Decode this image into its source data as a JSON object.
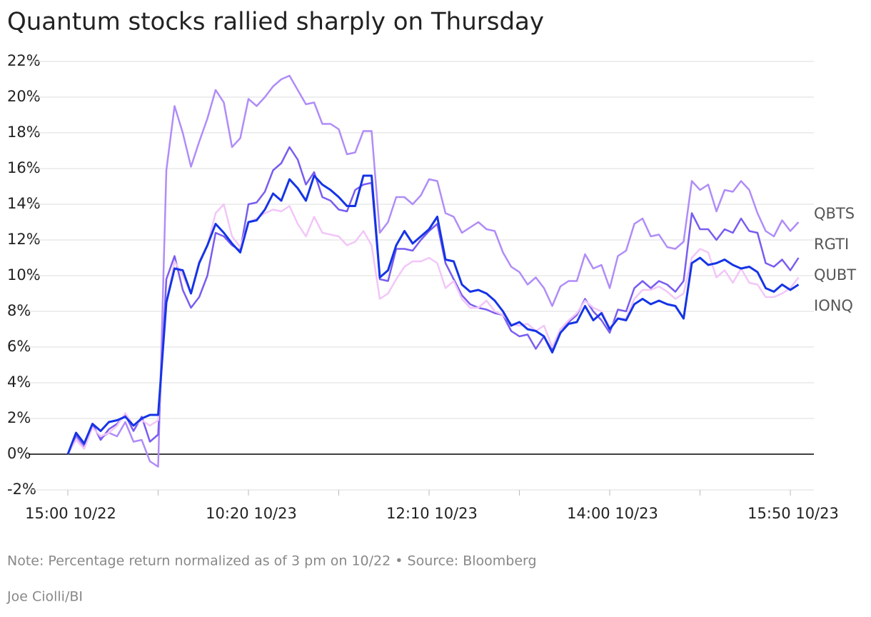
{
  "chart_data": {
    "type": "line",
    "title": "Quantum stocks rallied sharply on Thursday",
    "note": "Note: Percentage return normalized as of 3 pm on 10/22 • Source: Bloomberg",
    "credit": "Joe Ciolli/BI",
    "ylim": [
      -2,
      22
    ],
    "yticks": [
      {
        "value": -2,
        "label": "-2%"
      },
      {
        "value": 0,
        "label": "0%"
      },
      {
        "value": 2,
        "label": "2%"
      },
      {
        "value": 4,
        "label": "4%"
      },
      {
        "value": 6,
        "label": "6%"
      },
      {
        "value": 8,
        "label": "8%"
      },
      {
        "value": 10,
        "label": "10%"
      },
      {
        "value": 12,
        "label": "12%"
      },
      {
        "value": 14,
        "label": "14%"
      },
      {
        "value": 16,
        "label": "16%"
      },
      {
        "value": 18,
        "label": "18%"
      },
      {
        "value": 20,
        "label": "20%"
      },
      {
        "value": 22,
        "label": "22%"
      }
    ],
    "xticks": [
      {
        "value": 0,
        "label": "15:00 10/22"
      },
      {
        "value": 22,
        "label": "10:20 10/23"
      },
      {
        "value": 44,
        "label": "12:10 10/23"
      },
      {
        "value": 66,
        "label": "14:00 10/23"
      },
      {
        "value": 88,
        "label": "15:50 10/23"
      }
    ],
    "xminorticks": [
      11,
      33,
      55,
      77
    ],
    "grid": true,
    "series": [
      {
        "name": "QBTS",
        "color": "#b08cf8",
        "values": [
          0,
          1.0,
          0.4,
          1.6,
          0.9,
          1.2,
          1.0,
          1.8,
          0.7,
          0.8,
          -0.4,
          -0.7,
          15.9,
          19.5,
          18.0,
          16.1,
          17.5,
          18.8,
          20.4,
          19.7,
          17.2,
          17.7,
          19.9,
          19.5,
          20.0,
          20.6,
          21.0,
          21.2,
          20.4,
          19.6,
          19.7,
          18.5,
          18.5,
          18.2,
          16.8,
          16.9,
          18.1,
          18.1,
          12.4,
          13.0,
          14.4,
          14.4,
          14.0,
          14.5,
          15.4,
          15.3,
          13.5,
          13.3,
          12.4,
          12.7,
          13.0,
          12.6,
          12.5,
          11.3,
          10.5,
          10.2,
          9.5,
          9.9,
          9.3,
          8.3,
          9.4,
          9.7,
          9.7,
          11.2,
          10.4,
          10.6,
          9.3,
          11.1,
          11.4,
          12.9,
          13.2,
          12.2,
          12.3,
          11.6,
          11.5,
          11.9,
          15.3,
          14.8,
          15.1,
          13.6,
          14.8,
          14.7,
          15.3,
          14.8,
          13.5,
          12.5,
          12.2,
          13.1,
          12.5,
          13.0
        ]
      },
      {
        "name": "RGTI",
        "color": "#7a5cf0",
        "values": [
          0,
          1.1,
          0.5,
          1.7,
          0.8,
          1.4,
          1.7,
          2.2,
          1.3,
          2.1,
          0.7,
          1.1,
          9.8,
          11.1,
          9.2,
          8.2,
          8.8,
          10.0,
          12.4,
          12.2,
          11.7,
          11.4,
          14.0,
          14.1,
          14.7,
          15.9,
          16.3,
          17.2,
          16.5,
          15.1,
          15.8,
          14.4,
          14.2,
          13.7,
          13.6,
          14.8,
          15.1,
          15.2,
          9.8,
          9.7,
          11.5,
          11.5,
          11.4,
          12.0,
          12.5,
          12.9,
          10.7,
          9.8,
          8.9,
          8.4,
          8.2,
          8.1,
          7.9,
          7.8,
          6.9,
          6.6,
          6.7,
          5.9,
          6.6,
          5.8,
          7.0,
          7.4,
          7.8,
          8.7,
          8.0,
          7.5,
          6.8,
          8.1,
          8.0,
          9.3,
          9.7,
          9.3,
          9.7,
          9.5,
          9.1,
          9.7,
          13.5,
          12.6,
          12.6,
          12.0,
          12.6,
          12.4,
          13.2,
          12.5,
          12.4,
          10.7,
          10.5,
          10.9,
          10.3,
          11.0
        ]
      },
      {
        "name": "QUBT",
        "color": "#f2c6f8",
        "values": [
          0,
          0.8,
          0.3,
          1.5,
          1.0,
          1.2,
          1.6,
          2.3,
          1.6,
          1.9,
          1.6,
          1.9,
          8.5,
          10.8,
          10.0,
          9.0,
          10.8,
          11.7,
          13.5,
          14.0,
          12.2,
          11.6,
          13.0,
          13.2,
          13.5,
          13.7,
          13.6,
          13.9,
          12.9,
          12.2,
          13.3,
          12.4,
          12.3,
          12.2,
          11.7,
          11.9,
          12.5,
          11.7,
          8.7,
          9.0,
          9.8,
          10.5,
          10.8,
          10.8,
          11.0,
          10.7,
          9.3,
          9.7,
          8.7,
          8.2,
          8.2,
          8.6,
          8.0,
          7.8,
          7.3,
          7.2,
          7.3,
          6.9,
          7.2,
          6.0,
          7.0,
          7.5,
          7.9,
          8.6,
          8.2,
          8.0,
          7.1,
          7.6,
          7.6,
          8.7,
          9.2,
          9.2,
          9.4,
          9.1,
          8.7,
          9.0,
          11.0,
          11.5,
          11.3,
          9.9,
          10.3,
          9.6,
          10.4,
          9.6,
          9.5,
          8.8,
          8.8,
          9.0,
          9.3,
          9.9
        ]
      },
      {
        "name": "IONQ",
        "color": "#1534e6",
        "values": [
          0,
          1.2,
          0.6,
          1.7,
          1.3,
          1.8,
          1.9,
          2.1,
          1.6,
          2.0,
          2.2,
          2.2,
          8.5,
          10.4,
          10.3,
          9.0,
          10.7,
          11.7,
          12.9,
          12.4,
          11.8,
          11.3,
          13.0,
          13.1,
          13.7,
          14.6,
          14.2,
          15.4,
          14.9,
          14.2,
          15.6,
          15.1,
          14.8,
          14.4,
          13.9,
          13.9,
          15.6,
          15.6,
          9.9,
          10.3,
          11.7,
          12.5,
          11.8,
          12.2,
          12.6,
          13.3,
          10.9,
          10.8,
          9.5,
          9.1,
          9.2,
          9.0,
          8.6,
          8.0,
          7.2,
          7.4,
          7.0,
          6.9,
          6.6,
          5.7,
          6.8,
          7.3,
          7.4,
          8.3,
          7.5,
          7.9,
          7.0,
          7.6,
          7.5,
          8.4,
          8.7,
          8.4,
          8.6,
          8.4,
          8.3,
          7.6,
          10.7,
          11.0,
          10.6,
          10.7,
          10.9,
          10.6,
          10.4,
          10.5,
          10.2,
          9.3,
          9.1,
          9.5,
          9.2,
          9.5
        ]
      }
    ]
  }
}
